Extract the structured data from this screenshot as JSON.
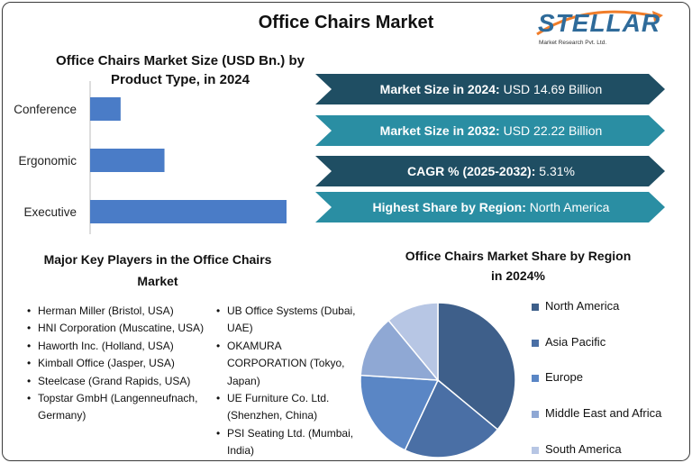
{
  "title": "Office Chairs Market",
  "logo": {
    "name": "STELLAR",
    "sub": "Market Research Pvt. Ltd."
  },
  "bar_chart_title": [
    "Office Chairs Market Size (USD Bn.) by",
    "Product Type, in 2024"
  ],
  "banners": [
    {
      "label": "Market Size in 2024:",
      "value": "USD 14.69 Billion",
      "color": "#1f4e63"
    },
    {
      "label": "Market Size in 2032:",
      "value": "USD 22.22 Billion",
      "color": "#2a8ea3"
    },
    {
      "label": "CAGR % (2025-2032):",
      "value": "5.31%",
      "color": "#1f4e63"
    },
    {
      "label": "Highest Share by Region:",
      "value": "North America",
      "color": "#2a8ea3"
    }
  ],
  "key_players_title": [
    "Major Key Players in the Office Chairs",
    "Market"
  ],
  "key_players_col1": [
    "Herman Miller (Bristol, USA)",
    "HNI Corporation (Muscatine, USA)",
    "Haworth Inc. (Holland, USA)",
    "Kimball Office (Jasper, USA)",
    "Steelcase (Grand Rapids, USA)",
    "Topstar GmbH (Langenneufnach, Germany)"
  ],
  "key_players_col2": [
    "UB Office Systems (Dubai, UAE)",
    "OKAMURA CORPORATION (Tokyo, Japan)",
    "UE Furniture Co. Ltd. (Shenzhen, China)",
    "PSI Seating Ltd. (Mumbai, India)"
  ],
  "pie_title": [
    "Office Chairs Market Share by Region",
    "in 2024%"
  ],
  "chart_data": [
    {
      "type": "bar",
      "orientation": "horizontal",
      "categories": [
        "Conference",
        "Ergonomic",
        "Executive"
      ],
      "values": [
        1.6,
        3.9,
        10.3
      ],
      "color": "#4a7cc7",
      "grid": false,
      "legend": "none"
    },
    {
      "type": "pie",
      "labels": [
        "North America",
        "Asia Pacific",
        "Europe",
        "Middle East and Africa",
        "South America"
      ],
      "values": [
        36,
        21,
        19,
        13,
        11
      ],
      "colors": [
        "#3e5f8a",
        "#4a6fa5",
        "#5a86c5",
        "#8fa8d4",
        "#b7c6e4"
      ],
      "legend": "right"
    }
  ]
}
